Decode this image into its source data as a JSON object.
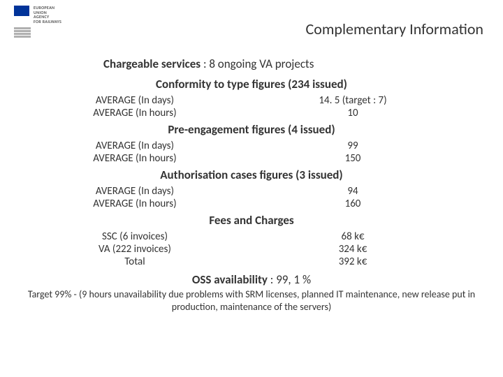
{
  "title": "Complementary Information",
  "logo": {
    "l1": "EUROPEAN",
    "l2": "UNION",
    "l3": "AGENCY",
    "l4": "FOR RAILWAYS"
  },
  "chargeable": {
    "label": "Chargeable services",
    "value": ": 8 ongoing VA projects"
  },
  "sections": [
    {
      "heading": "Conformity to type figures (234 issued)",
      "rows": [
        {
          "label": "AVERAGE (In days)",
          "value": "14. 5 (target : 7)"
        },
        {
          "label": "AVERAGE (In hours)",
          "value": "10"
        }
      ]
    },
    {
      "heading": "Pre-engagement figures (4 issued)",
      "rows": [
        {
          "label": "AVERAGE (In days)",
          "value": "99"
        },
        {
          "label": "AVERAGE (In hours)",
          "value": "150"
        }
      ]
    },
    {
      "heading": "Authorisation cases figures (3 issued)",
      "rows": [
        {
          "label": "AVERAGE (In days)",
          "value": "94"
        },
        {
          "label": "AVERAGE (In hours)",
          "value": "160"
        }
      ]
    },
    {
      "heading": "Fees and Charges",
      "rows": [
        {
          "label": "SSC (6 invoices)",
          "value": "68 k€"
        },
        {
          "label": "VA (222 invoices)",
          "value": "324 k€"
        },
        {
          "label": "Total",
          "value": "392 k€"
        }
      ]
    }
  ],
  "oss": {
    "label": "OSS availability",
    "value": ": 99, 1 %"
  },
  "footer": "Target 99% - (9 hours unavailability due problems with SRM licenses, planned IT maintenance, new release put in production, maintenance of the servers)"
}
